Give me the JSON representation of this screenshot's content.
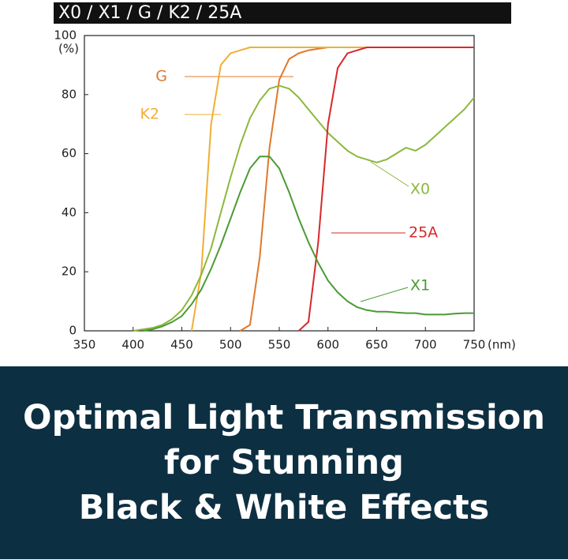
{
  "chart_data": {
    "type": "line",
    "title": "X0 / X1 / G / K2 / 25A",
    "xlabel": "(nm)",
    "ylabel": "(%)",
    "x": [
      350,
      360,
      370,
      380,
      390,
      400,
      410,
      420,
      430,
      440,
      450,
      460,
      470,
      480,
      490,
      500,
      510,
      520,
      530,
      540,
      550,
      560,
      570,
      580,
      590,
      600,
      610,
      620,
      630,
      640,
      650,
      660,
      670,
      680,
      690,
      700,
      710,
      720,
      730,
      740,
      750
    ],
    "xlim": [
      350,
      750
    ],
    "xticks": [
      350,
      400,
      450,
      500,
      550,
      600,
      650,
      700,
      750
    ],
    "ylim": [
      0,
      100
    ],
    "yticks": [
      0,
      20,
      40,
      60,
      80,
      100
    ],
    "series": [
      {
        "name": "G",
        "color": "#e0782a",
        "values": [
          null,
          null,
          null,
          null,
          null,
          null,
          null,
          null,
          null,
          null,
          null,
          null,
          null,
          null,
          null,
          null,
          0,
          2,
          25,
          62,
          85,
          92,
          94,
          95,
          95.5,
          96,
          96,
          96,
          96,
          96,
          96,
          96,
          96,
          96,
          96,
          96,
          96,
          96,
          96,
          96,
          96
        ]
      },
      {
        "name": "K2",
        "color": "#f0ae35",
        "values": [
          null,
          null,
          null,
          null,
          null,
          null,
          null,
          null,
          null,
          null,
          null,
          0,
          20,
          70,
          90,
          94,
          95,
          96,
          96,
          96,
          96,
          96,
          96,
          96,
          96,
          96,
          96,
          96,
          96,
          96,
          96,
          96,
          96,
          96,
          96,
          96,
          96,
          96,
          96,
          96,
          96
        ]
      },
      {
        "name": "X0",
        "color": "#8cb83c",
        "values": [
          null,
          null,
          null,
          null,
          null,
          0,
          0.5,
          1,
          2,
          4,
          7,
          12,
          19,
          28,
          40,
          52,
          63,
          72,
          78,
          82,
          83,
          82,
          79,
          75,
          71,
          67,
          64,
          61,
          59,
          58,
          57,
          58,
          60,
          62,
          61,
          63,
          66,
          69,
          72,
          75,
          79
        ]
      },
      {
        "name": "25A",
        "color": "#d8282a",
        "values": [
          null,
          null,
          null,
          null,
          null,
          null,
          null,
          null,
          null,
          null,
          null,
          null,
          null,
          null,
          null,
          null,
          null,
          null,
          null,
          null,
          null,
          null,
          0,
          3,
          30,
          70,
          89,
          94,
          95,
          96,
          96,
          96,
          96,
          96,
          96,
          96,
          96,
          96,
          96,
          96,
          96
        ]
      },
      {
        "name": "X1",
        "color": "#4a9a34",
        "values": [
          null,
          null,
          null,
          null,
          null,
          null,
          0,
          0.5,
          1.5,
          3,
          5,
          9,
          14,
          21,
          29,
          38,
          47,
          55,
          59,
          59,
          55,
          47,
          38,
          30,
          23,
          17,
          13,
          10,
          8,
          7,
          6.5,
          6.5,
          6.2,
          6,
          6,
          5.5,
          5.5,
          5.5,
          5.8,
          6,
          6
        ]
      }
    ]
  },
  "banner": {
    "lines": [
      "Optimal Light Transmission",
      "for Stunning",
      "Black & White Effects"
    ]
  }
}
